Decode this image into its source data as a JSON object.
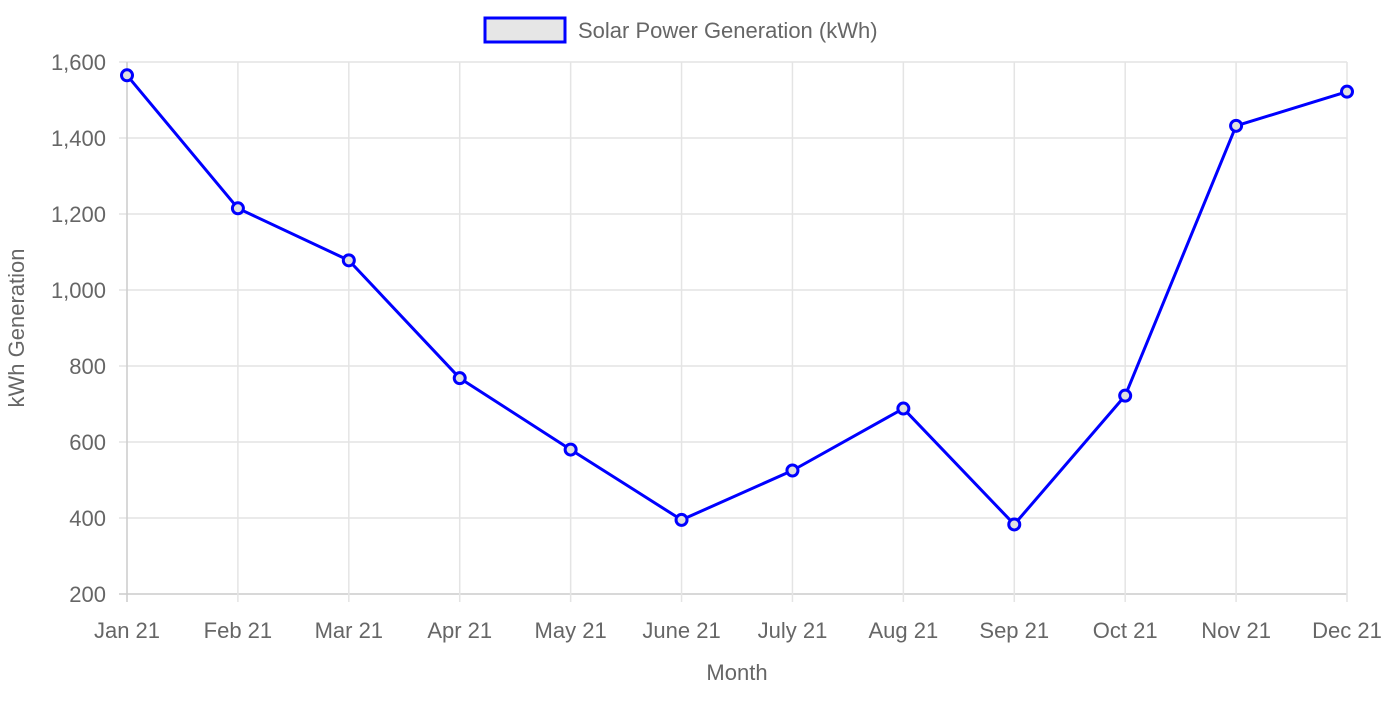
{
  "chart_data": {
    "type": "line",
    "categories": [
      "Jan 21",
      "Feb 21",
      "Mar 21",
      "Apr 21",
      "May 21",
      "June 21",
      "July 21",
      "Aug 21",
      "Sep 21",
      "Oct 21",
      "Nov 21",
      "Dec 21"
    ],
    "series": [
      {
        "name": "Solar Power Generation (kWh)",
        "values": [
          1565,
          1215,
          1078,
          768,
          580,
          395,
          525,
          688,
          383,
          722,
          1432,
          1522
        ],
        "color": "#0000ff",
        "point_fill": "#e0e0e0"
      }
    ],
    "xlabel": "Month",
    "ylabel": "kWh Generation",
    "ylim": [
      200,
      1600
    ],
    "yticks": [
      {
        "value": 200,
        "label": "200"
      },
      {
        "value": 400,
        "label": "400"
      },
      {
        "value": 600,
        "label": "600"
      },
      {
        "value": 800,
        "label": "800"
      },
      {
        "value": 1000,
        "label": "1,000"
      },
      {
        "value": 1200,
        "label": "1,200"
      },
      {
        "value": 1400,
        "label": "1,400"
      },
      {
        "value": 1600,
        "label": "1,600"
      }
    ],
    "grid": true,
    "legend_position": "top-center"
  }
}
